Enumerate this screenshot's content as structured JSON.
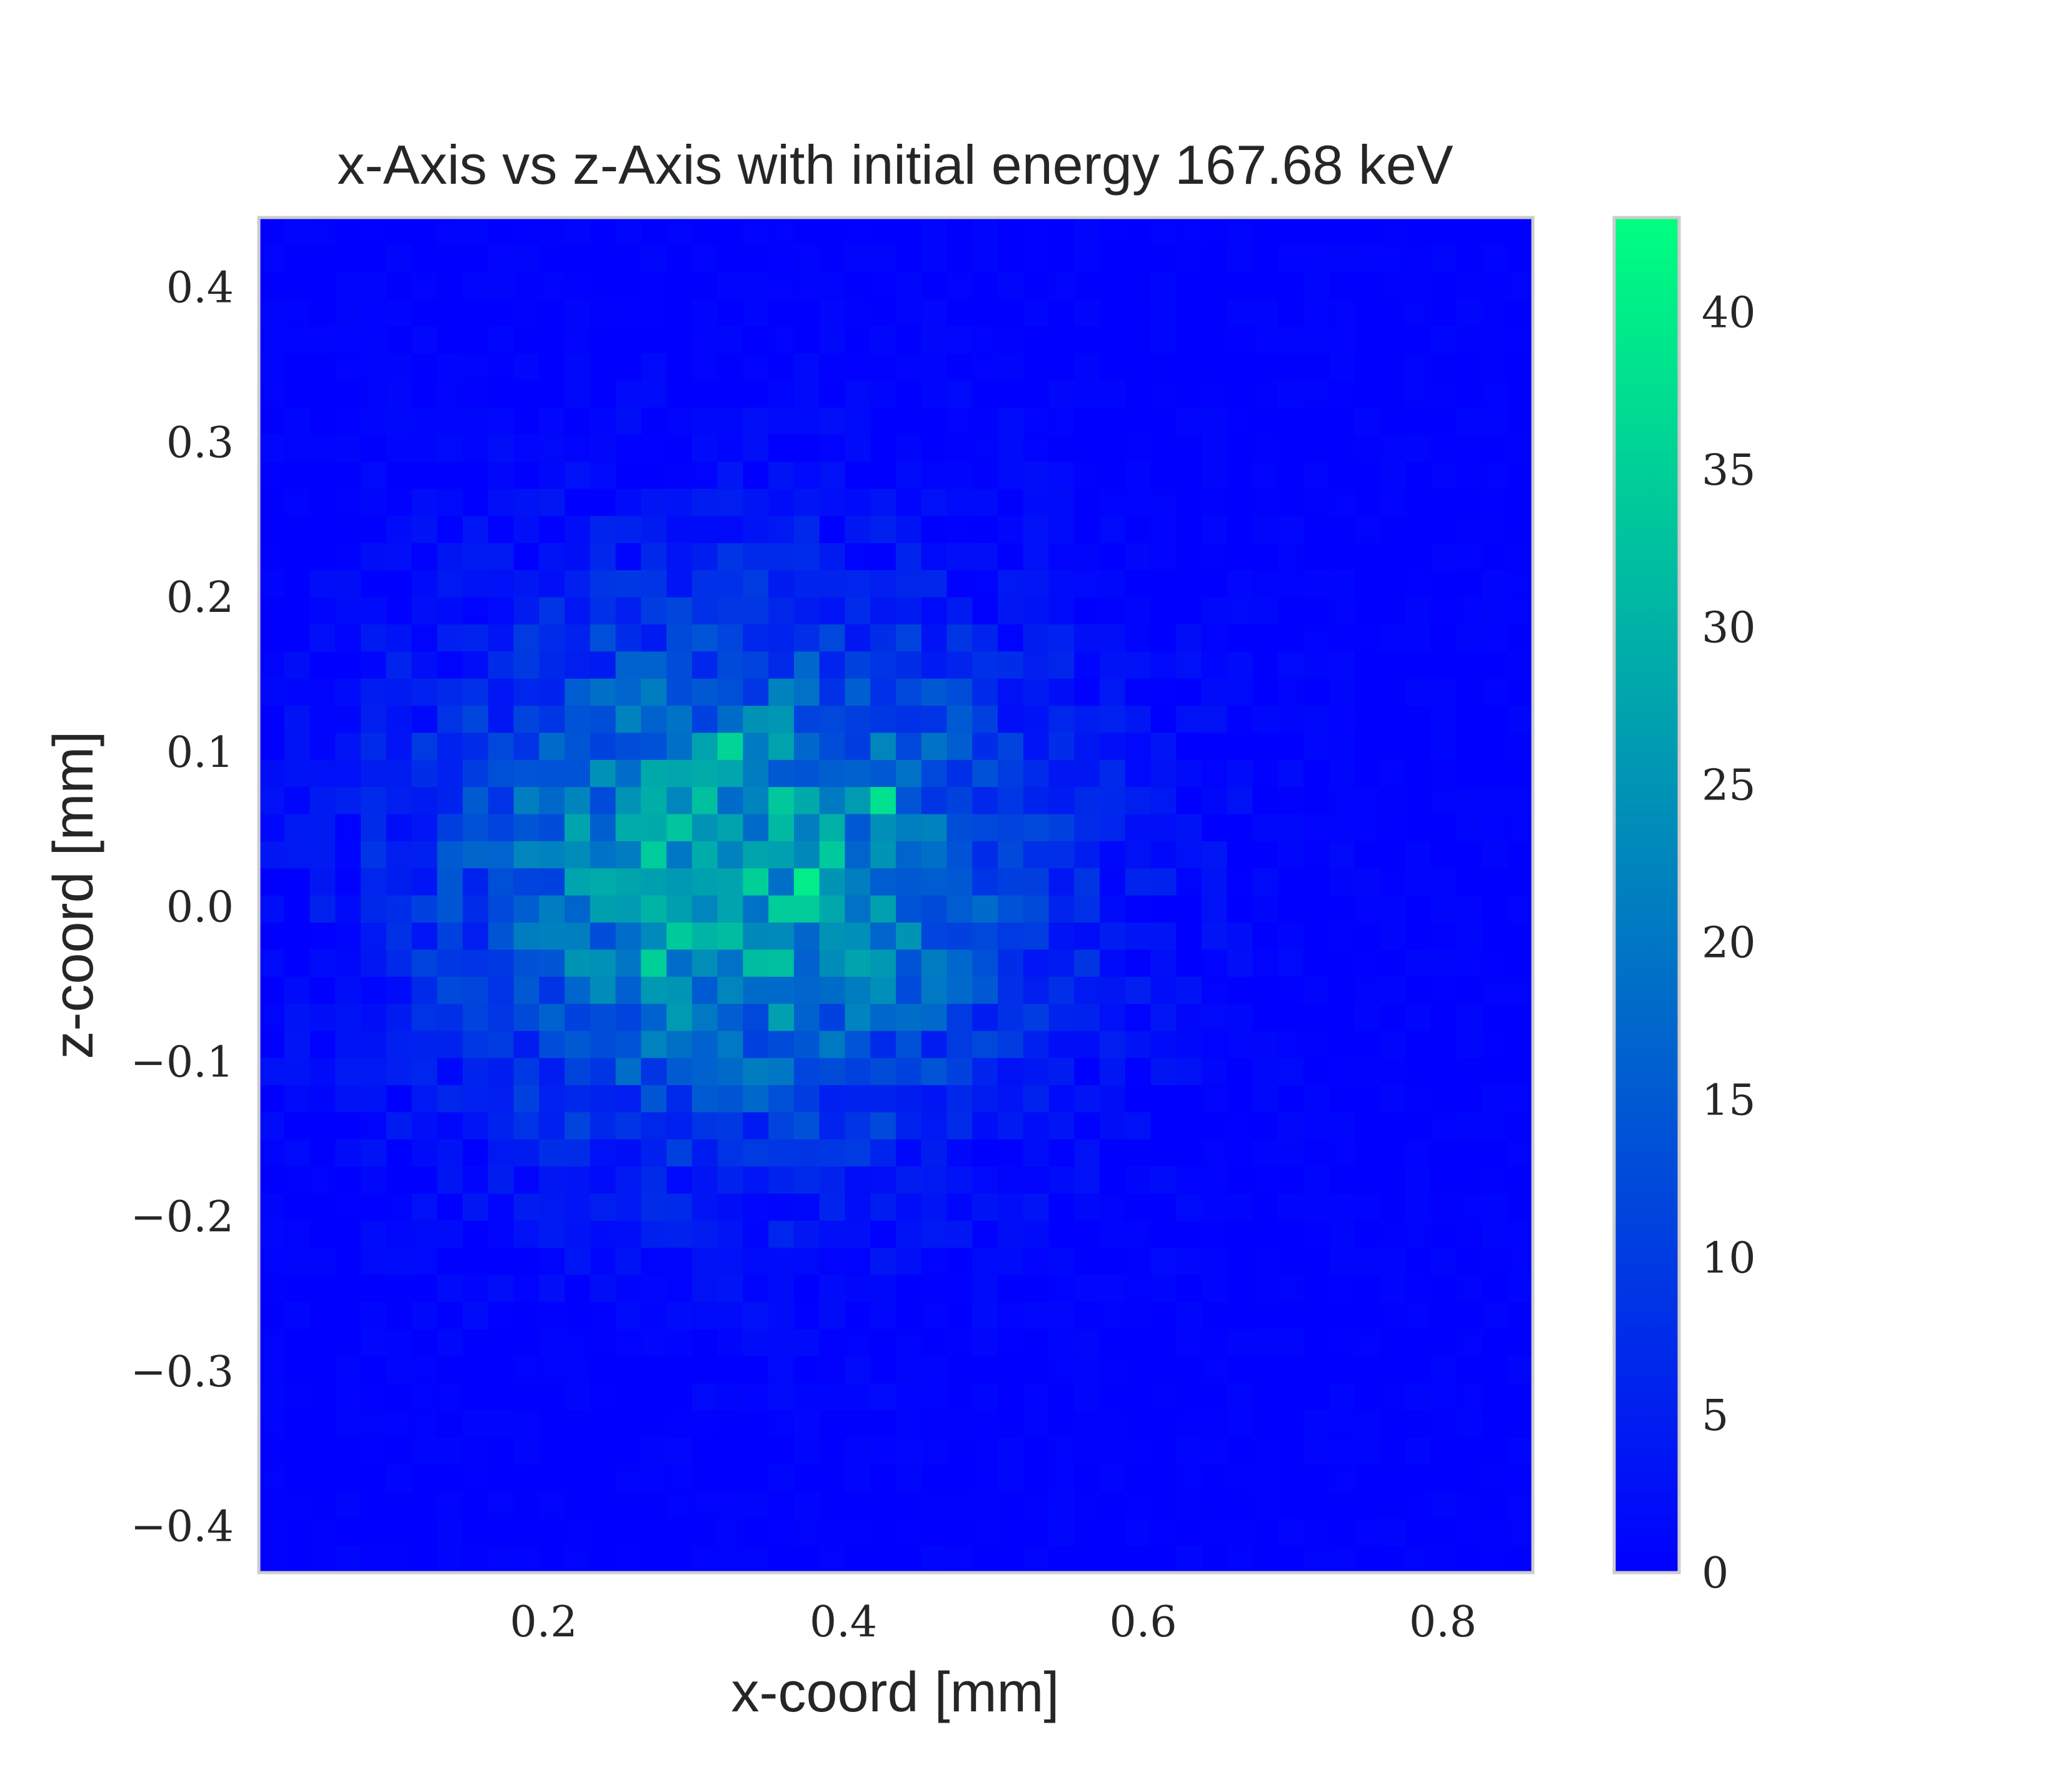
{
  "chart_data": {
    "type": "heatmap",
    "title": "x-Axis vs z-Axis with initial energy 167.68 keV",
    "xlabel": "x-coord [mm]",
    "ylabel": "z-coord [mm]",
    "xlim": [
      0.01,
      0.86
    ],
    "ylim": [
      -0.43,
      0.445
    ],
    "xticks": [
      "0.2",
      "0.4",
      "0.6",
      "0.8"
    ],
    "yticks": [
      "−0.4",
      "−0.3",
      "−0.2",
      "−0.1",
      "0.0",
      "0.1",
      "0.2",
      "0.3",
      "0.4"
    ],
    "grid": false,
    "bins": [
      50,
      50
    ],
    "distribution": {
      "center_x": 0.33,
      "center_z": 0.02,
      "sigma_x": 0.13,
      "sigma_z": 0.11,
      "peak_count": 40
    },
    "hot_bins": [
      {
        "x": 0.37,
        "z": 0.02,
        "count": 40
      },
      {
        "x": 0.43,
        "z": 0.07,
        "count": 38
      },
      {
        "x": 0.32,
        "z": 0.11,
        "count": 36
      },
      {
        "x": 0.34,
        "z": 0.02,
        "count": 35
      },
      {
        "x": 0.28,
        "z": -0.03,
        "count": 35
      },
      {
        "x": 0.39,
        "z": 0.04,
        "count": 34
      }
    ],
    "colormap": {
      "name": "winter",
      "low_color": "#0000ff",
      "high_color": "#00ff80",
      "vmin": 0,
      "vmax": 43
    },
    "colorbar": {
      "ticks": [
        "0",
        "5",
        "10",
        "15",
        "20",
        "25",
        "30",
        "35",
        "40"
      ]
    }
  }
}
